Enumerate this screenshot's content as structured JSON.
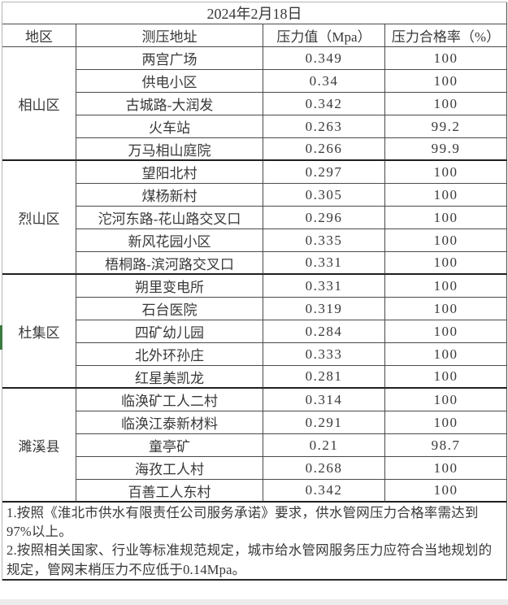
{
  "title": "2024年2月18日",
  "columns": [
    "地区",
    "测压地址",
    "压力值（Mpa）",
    "压力合格率（%）"
  ],
  "sections": [
    {
      "region": "相山区",
      "rows": [
        {
          "address": "两宫广场",
          "pressure": "0.349",
          "rate": "100"
        },
        {
          "address": "供电小区",
          "pressure": "0.34",
          "rate": "100"
        },
        {
          "address": "古城路-大润发",
          "pressure": "0.342",
          "rate": "100"
        },
        {
          "address": "火车站",
          "pressure": "0.263",
          "rate": "99.2"
        },
        {
          "address": "万马相山庭院",
          "pressure": "0.266",
          "rate": "99.9"
        }
      ]
    },
    {
      "region": "烈山区",
      "rows": [
        {
          "address": "望阳北村",
          "pressure": "0.297",
          "rate": "100"
        },
        {
          "address": "煤杨新村",
          "pressure": "0.305",
          "rate": "100"
        },
        {
          "address": "沱河东路-花山路交叉口",
          "pressure": "0.296",
          "rate": "100"
        },
        {
          "address": "新风花园小区",
          "pressure": "0.335",
          "rate": "100"
        },
        {
          "address": "梧桐路-滨河路交叉口",
          "pressure": "0.331",
          "rate": "100"
        }
      ]
    },
    {
      "region": "杜集区",
      "rows": [
        {
          "address": "朔里变电所",
          "pressure": "0.331",
          "rate": "100"
        },
        {
          "address": "石台医院",
          "pressure": "0.319",
          "rate": "100"
        },
        {
          "address": "四矿幼儿园",
          "pressure": "0.284",
          "rate": "100"
        },
        {
          "address": "北外环孙庄",
          "pressure": "0.333",
          "rate": "100"
        },
        {
          "address": "红星美凯龙",
          "pressure": "0.281",
          "rate": "100"
        }
      ]
    },
    {
      "region": "濉溪县",
      "rows": [
        {
          "address": "临涣矿工人二村",
          "pressure": "0.314",
          "rate": "100"
        },
        {
          "address": "临涣江泰新材料",
          "pressure": "0.291",
          "rate": "100"
        },
        {
          "address": "童亭矿",
          "pressure": "0.21",
          "rate": "98.7"
        },
        {
          "address": "海孜工人村",
          "pressure": "0.268",
          "rate": "100"
        },
        {
          "address": "百善工人东村",
          "pressure": "0.342",
          "rate": "100"
        }
      ]
    }
  ],
  "notes": [
    "1.按照《淮北市供水有限责任公司服务承诺》要求，供水管网压力合格率需达到97%以上。",
    "2.按照相关国家、行业等标准规范规定，城市给水管网服务压力应符合当地规划的规定，管网末梢压力不应低于0.14Mpa。"
  ],
  "colors": {
    "grid_border": "#4a4a4a",
    "section_border": "#1f1f1f",
    "outer_light_border": "#b5b5b5",
    "accent_green": "#3c7a3d",
    "text": "#383838"
  }
}
